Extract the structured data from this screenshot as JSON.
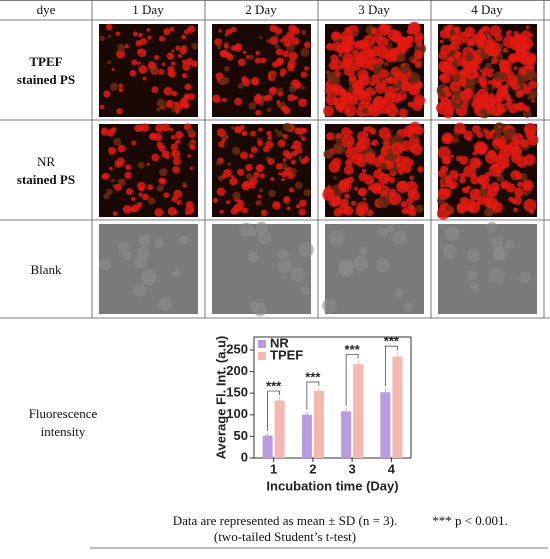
{
  "table": {
    "header": [
      "dye",
      "1 Day",
      "2 Day",
      "3 Day",
      "4 Day"
    ],
    "rows": [
      {
        "lines": [
          "TPEF",
          "stained PS"
        ]
      },
      {
        "lines": [
          "NR",
          "stained PS"
        ]
      },
      {
        "lines": [
          "Blank"
        ]
      }
    ]
  },
  "chart_label": [
    "Fluorescence",
    "intensity"
  ],
  "chart_data": {
    "type": "bar",
    "ylabel": "Average Fl. Int. (a.u)",
    "xlabel": "Incubation time (Day)",
    "categories": [
      "1",
      "2",
      "3",
      "4"
    ],
    "series": [
      {
        "name": "NR",
        "color": "#b99be0",
        "values": [
          52,
          100,
          108,
          152
        ],
        "errors": [
          6,
          7,
          8,
          9
        ]
      },
      {
        "name": "TPEF",
        "color": "#f4b8b0",
        "values": [
          133,
          155,
          217,
          235
        ],
        "errors": [
          8,
          7,
          9,
          10
        ]
      }
    ],
    "annotations": [
      "***",
      "***",
      "***",
      "***"
    ],
    "ylim": [
      0,
      280
    ],
    "yticks": [
      0,
      50,
      100,
      150,
      200,
      250
    ],
    "legend": "upper left"
  },
  "footer": {
    "note": "Data are represented as mean ± SD (n = 3).",
    "p": "*** p < 0.001.",
    "test": "(two-tailed Student’s t-test)"
  }
}
